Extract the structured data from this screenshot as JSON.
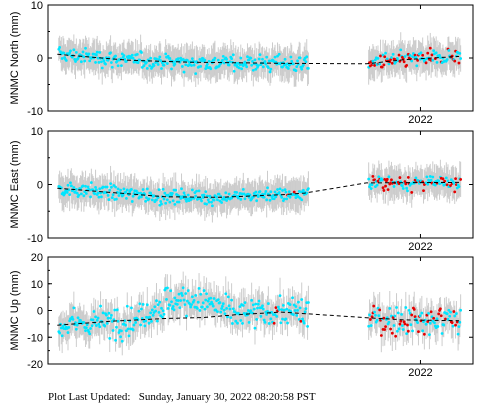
{
  "footer": {
    "label": "Plot Last Updated:",
    "timestamp": "Sunday, January 30, 2022 08:20:58 PST"
  },
  "colors": {
    "normal_points": "#00e5ff",
    "recent_points": "#e60000",
    "error_bars": "#cccccc",
    "trend_line": "#000000"
  },
  "chart_data": [
    {
      "type": "scatter",
      "ylabel": "MNMC North (mm)",
      "ylim": [
        -10,
        10
      ],
      "yticks": [
        -10,
        0,
        10
      ],
      "xticks": [
        {
          "label": "2022",
          "x": 2022.0
        }
      ],
      "xlim": [
        2017.18,
        2022.68
      ],
      "grid": false,
      "series": [
        {
          "mean_mm": 0.2,
          "spread_mm": 1.3
        }
      ],
      "trend": [
        [
          2017.3,
          0.7
        ],
        [
          2018.2,
          -0.4
        ],
        [
          2019.0,
          -0.8
        ],
        [
          2020.2,
          -1.0
        ],
        [
          2021.3,
          -1.1
        ],
        [
          2021.8,
          -0.3
        ],
        [
          2022.5,
          0.3
        ]
      ]
    },
    {
      "type": "scatter",
      "ylabel": "MNMC East (mm)",
      "ylim": [
        -10,
        10
      ],
      "yticks": [
        -10,
        0,
        10
      ],
      "xticks": [
        {
          "label": "2022",
          "x": 2022.0
        }
      ],
      "xlim": [
        2017.18,
        2022.68
      ],
      "grid": false,
      "series": [
        {
          "mean_mm": -1.2,
          "spread_mm": 1.2
        }
      ],
      "trend": [
        [
          2017.3,
          -0.7
        ],
        [
          2018.1,
          -1.6
        ],
        [
          2018.7,
          -2.3
        ],
        [
          2019.4,
          -2.4
        ],
        [
          2020.2,
          -1.9
        ],
        [
          2020.5,
          -1.6
        ],
        [
          2021.3,
          0.3
        ],
        [
          2022.5,
          0.4
        ]
      ]
    },
    {
      "type": "scatter",
      "ylabel": "MNMC Up (mm)",
      "ylim": [
        -20,
        20
      ],
      "yticks": [
        -20,
        -10,
        0,
        10,
        20
      ],
      "xticks": [
        {
          "label": "2022",
          "x": 2022.0
        }
      ],
      "xlim": [
        2017.18,
        2022.68
      ],
      "grid": false,
      "series": [
        {
          "mean_mm": 0.0,
          "spread_mm": 5.0
        }
      ],
      "trend": [
        [
          2017.3,
          -5.5
        ],
        [
          2018.0,
          -4.0
        ],
        [
          2018.7,
          -3.0
        ],
        [
          2019.2,
          -2.6
        ],
        [
          2019.6,
          -1.6
        ],
        [
          2020.2,
          -0.6
        ],
        [
          2021.3,
          -2.7
        ],
        [
          2021.8,
          -3.5
        ],
        [
          2022.5,
          -3.8
        ]
      ]
    }
  ]
}
